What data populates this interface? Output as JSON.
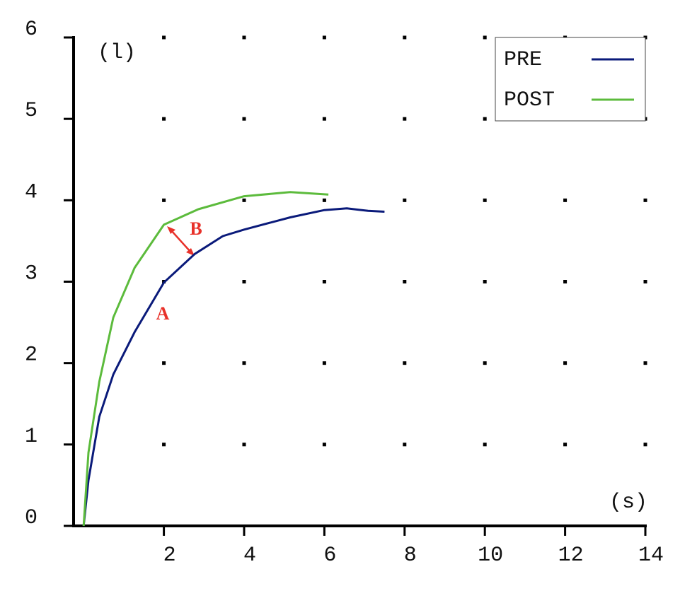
{
  "chart_data": {
    "type": "line",
    "y_label": "(l)",
    "x_label": "(s)",
    "series": [
      {
        "name": "PRE",
        "color": "#0a1a7a",
        "x": [
          0,
          0.12,
          0.39,
          0.74,
          1.27,
          2,
          2.77,
          3.47,
          4,
          5.15,
          6,
          6.56,
          7.09,
          7.5
        ],
        "values": [
          0,
          0.56,
          1.34,
          1.86,
          2.38,
          2.99,
          3.34,
          3.56,
          3.64,
          3.79,
          3.88,
          3.9,
          3.87,
          3.86
        ]
      },
      {
        "name": "POST",
        "color": "#5cbb3c",
        "x": [
          0,
          0.12,
          0.39,
          0.74,
          1.27,
          2,
          2.86,
          4,
          5.15,
          6.1
        ],
        "values": [
          0,
          0.9,
          1.77,
          2.56,
          3.17,
          3.7,
          3.89,
          4.05,
          4.1,
          4.07
        ]
      }
    ],
    "annotations": [
      "A",
      "B"
    ],
    "xlim": [
      -0.25,
      14
    ],
    "ylim": [
      0,
      6
    ],
    "xticks": [
      2,
      4,
      6,
      8,
      10,
      12,
      14
    ],
    "yticks": [
      0,
      1,
      2,
      3,
      4,
      5,
      6
    ],
    "grid": true,
    "legend": "upper right"
  }
}
